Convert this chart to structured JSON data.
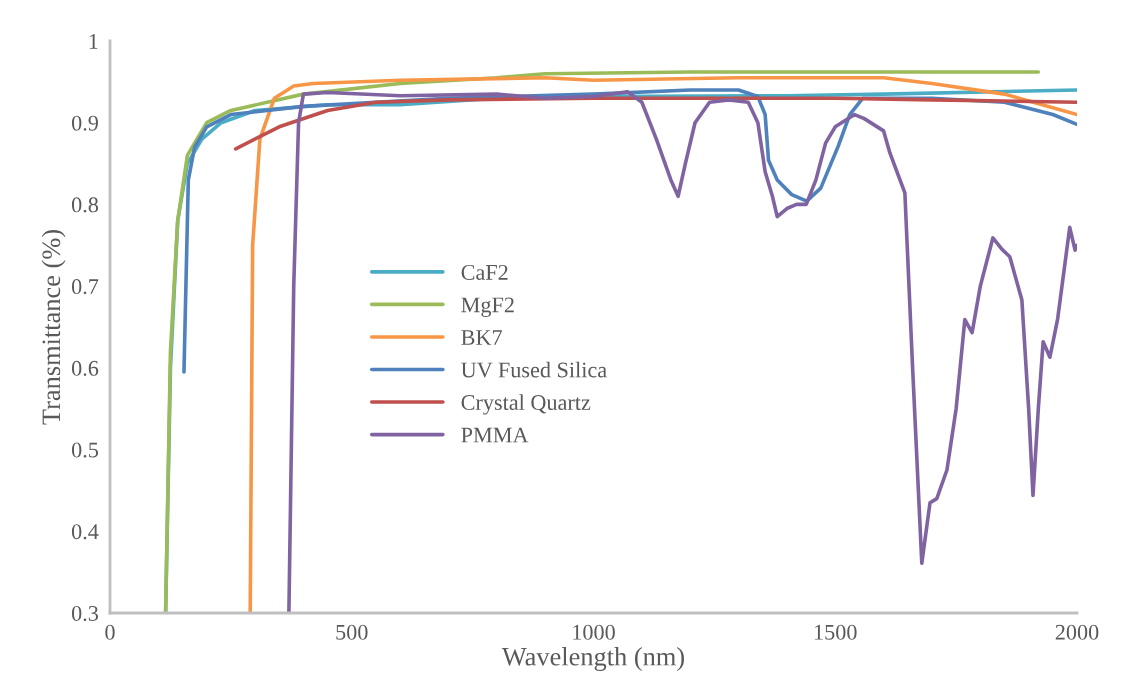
{
  "chart_data": {
    "type": "line",
    "xlabel": "Wavelength (nm)",
    "ylabel": "Transmittance (%)",
    "xlim": [
      0,
      2000
    ],
    "xticks": [
      0,
      500,
      1000,
      1500,
      2000
    ],
    "ylim": [
      0.3,
      1
    ],
    "yticks": [
      0.3,
      0.4,
      0.5,
      0.6,
      0.7,
      0.8,
      0.9,
      1
    ],
    "grid": false,
    "legend": "center left",
    "marker": "none",
    "line_style": "solid",
    "series": [
      {
        "name": "CaF2",
        "color": "#4bacc6",
        "x": [
          115,
          125,
          140,
          160,
          190,
          230,
          300,
          450,
          600,
          800,
          1000,
          1400,
          1600,
          2000
        ],
        "values": [
          0.3,
          0.6,
          0.78,
          0.85,
          0.88,
          0.9,
          0.915,
          0.922,
          0.922,
          0.93,
          0.932,
          0.933,
          0.935,
          0.94
        ]
      },
      {
        "name": "MgF2",
        "color": "#9bbb59",
        "x": [
          115,
          125,
          140,
          160,
          200,
          250,
          400,
          600,
          800,
          900,
          1200,
          1920
        ],
        "values": [
          0.3,
          0.62,
          0.78,
          0.86,
          0.9,
          0.915,
          0.935,
          0.948,
          0.955,
          0.96,
          0.962,
          0.962
        ]
      },
      {
        "name": "BK7",
        "color": "#f79646",
        "x": [
          290,
          295,
          310,
          340,
          380,
          420,
          600,
          900,
          1000,
          1300,
          1600,
          1700,
          1850,
          2000
        ],
        "values": [
          0.3,
          0.75,
          0.88,
          0.93,
          0.945,
          0.948,
          0.952,
          0.955,
          0.952,
          0.955,
          0.955,
          0.948,
          0.935,
          0.91
        ]
      },
      {
        "name": "UV Fused Silica",
        "color": "#4f81bd",
        "x": [
          153,
          157,
          162,
          175,
          200,
          250,
          400,
          700,
          1000,
          1200,
          1300,
          1340,
          1355,
          1362,
          1380,
          1410,
          1441,
          1470,
          1506,
          1530,
          1557,
          1700,
          1850,
          1950,
          2000
        ],
        "values": [
          0.595,
          0.7,
          0.83,
          0.87,
          0.895,
          0.91,
          0.92,
          0.93,
          0.935,
          0.94,
          0.94,
          0.932,
          0.91,
          0.854,
          0.83,
          0.812,
          0.804,
          0.82,
          0.871,
          0.91,
          0.93,
          0.93,
          0.925,
          0.91,
          0.898
        ]
      },
      {
        "name": "Crystal Quartz",
        "color": "#c0504d",
        "x": [
          260,
          350,
          450,
          550,
          700,
          1000,
          1500,
          1700,
          2000
        ],
        "values": [
          0.868,
          0.895,
          0.915,
          0.925,
          0.928,
          0.93,
          0.93,
          0.928,
          0.925
        ]
      },
      {
        "name": "PMMA",
        "color": "#8064a2",
        "x": [
          370,
          380,
          390,
          400,
          450,
          600,
          800,
          900,
          1000,
          1070,
          1100,
          1130,
          1160,
          1175,
          1190,
          1210,
          1240,
          1280,
          1320,
          1340,
          1355,
          1370,
          1380,
          1400,
          1420,
          1440,
          1460,
          1480,
          1500,
          1540,
          1560,
          1600,
          1613,
          1644,
          1660,
          1679,
          1696,
          1710,
          1731,
          1750,
          1768,
          1783,
          1800,
          1826,
          1845,
          1861,
          1886,
          1900,
          1909,
          1920,
          1930,
          1944,
          1960,
          1985,
          1996,
          2000
        ],
        "values": [
          0.3,
          0.7,
          0.9,
          0.935,
          0.937,
          0.933,
          0.935,
          0.93,
          0.932,
          0.938,
          0.925,
          0.88,
          0.83,
          0.81,
          0.85,
          0.9,
          0.925,
          0.928,
          0.925,
          0.9,
          0.84,
          0.81,
          0.785,
          0.795,
          0.8,
          0.8,
          0.83,
          0.875,
          0.895,
          0.91,
          0.905,
          0.89,
          0.863,
          0.814,
          0.6,
          0.361,
          0.435,
          0.44,
          0.475,
          0.55,
          0.659,
          0.643,
          0.7,
          0.759,
          0.745,
          0.736,
          0.683,
          0.55,
          0.444,
          0.55,
          0.632,
          0.613,
          0.66,
          0.772,
          0.744,
          0.75
        ]
      }
    ]
  }
}
